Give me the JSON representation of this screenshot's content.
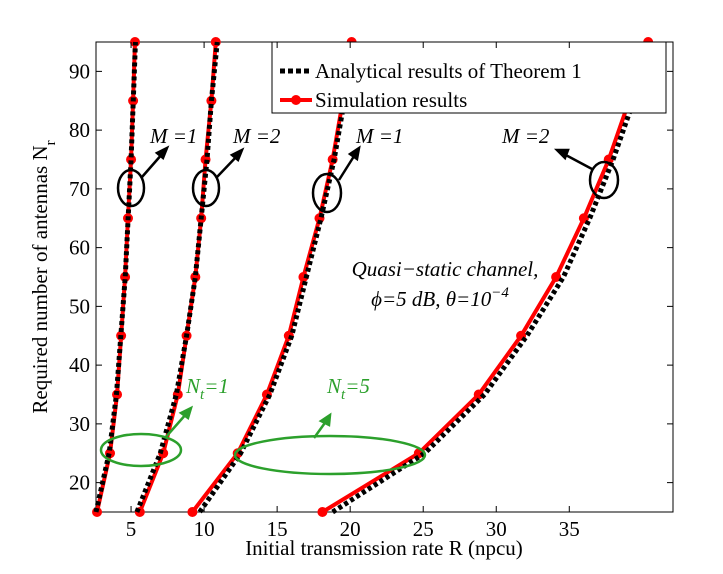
{
  "chart_data": {
    "type": "line",
    "xlabel": "Initial transmission rate R (npcu)",
    "ylabel": "Required number of antennas N",
    "ylabel_sub": "r",
    "xlim": [
      2.6,
      42.1
    ],
    "ylim": [
      15,
      95
    ],
    "xticks": [
      5,
      10,
      15,
      20,
      25,
      30,
      35
    ],
    "yticks": [
      20,
      30,
      40,
      50,
      60,
      70,
      80,
      90
    ],
    "legend": "upper right",
    "series": [
      {
        "name": "Analytical results of Theorem 1",
        "color": "#000000",
        "style": "dotted",
        "curves": [
          {
            "x": [
              2.6,
              3.5,
              4.0,
              4.3,
              4.6,
              4.8,
              5.0,
              5.15,
              5.3
            ],
            "y": [
              15,
              25,
              35,
              45,
              55,
              65,
              75,
              85,
              95
            ]
          },
          {
            "x": [
              5.4,
              7.0,
              8.1,
              8.8,
              9.4,
              9.8,
              10.2,
              10.5,
              10.9
            ],
            "y": [
              15,
              25,
              35,
              45,
              55,
              65,
              75,
              85,
              95
            ]
          },
          {
            "x": [
              9.7,
              12.5,
              14.5,
              16.0,
              17.0,
              18.0,
              18.9,
              19.6,
              20.2
            ],
            "y": [
              15,
              25,
              35,
              45,
              55,
              65,
              75,
              85,
              95
            ]
          },
          {
            "x": [
              18.8,
              25.1,
              29.2,
              32.1,
              34.6,
              36.4,
              38.0,
              39.4,
              40.9
            ],
            "y": [
              15,
              25,
              35,
              45,
              55,
              65,
              75,
              85,
              95
            ]
          }
        ]
      },
      {
        "name": "Simulation results",
        "color": "#ff0000",
        "style": "solid-marker",
        "curves": [
          {
            "x": [
              2.67,
              3.56,
              4.04,
              4.32,
              4.59,
              4.79,
              5.0,
              5.14,
              5.27
            ],
            "y": [
              15,
              25,
              35,
              45,
              55,
              65,
              75,
              85,
              95
            ]
          },
          {
            "x": [
              5.6,
              7.2,
              8.2,
              8.8,
              9.4,
              9.8,
              10.1,
              10.5,
              10.8
            ],
            "y": [
              15,
              25,
              35,
              45,
              55,
              65,
              75,
              85,
              95
            ]
          },
          {
            "x": [
              9.2,
              12.3,
              14.3,
              15.8,
              16.8,
              17.9,
              18.8,
              19.5,
              20.1
            ],
            "y": [
              15,
              25,
              35,
              45,
              55,
              65,
              75,
              85,
              95
            ]
          },
          {
            "x": [
              18.1,
              24.7,
              28.8,
              31.7,
              34.1,
              36.0,
              37.7,
              39.1,
              40.4
            ],
            "y": [
              15,
              25,
              35,
              45,
              55,
              65,
              75,
              85,
              95
            ]
          }
        ]
      }
    ],
    "annotations": {
      "m1a": "M =1",
      "m2a": "M =2",
      "m1b": "M =1",
      "m2b": "M =2",
      "nt1": {
        "base": "N",
        "sub": "t",
        "rest": "=1"
      },
      "nt5": {
        "base": "N",
        "sub": "t",
        "rest": "=5"
      },
      "channel": "Quasi−static channel,",
      "params": {
        "text": "ϕ=5 dB, θ=10",
        "sup": "−4"
      }
    }
  }
}
